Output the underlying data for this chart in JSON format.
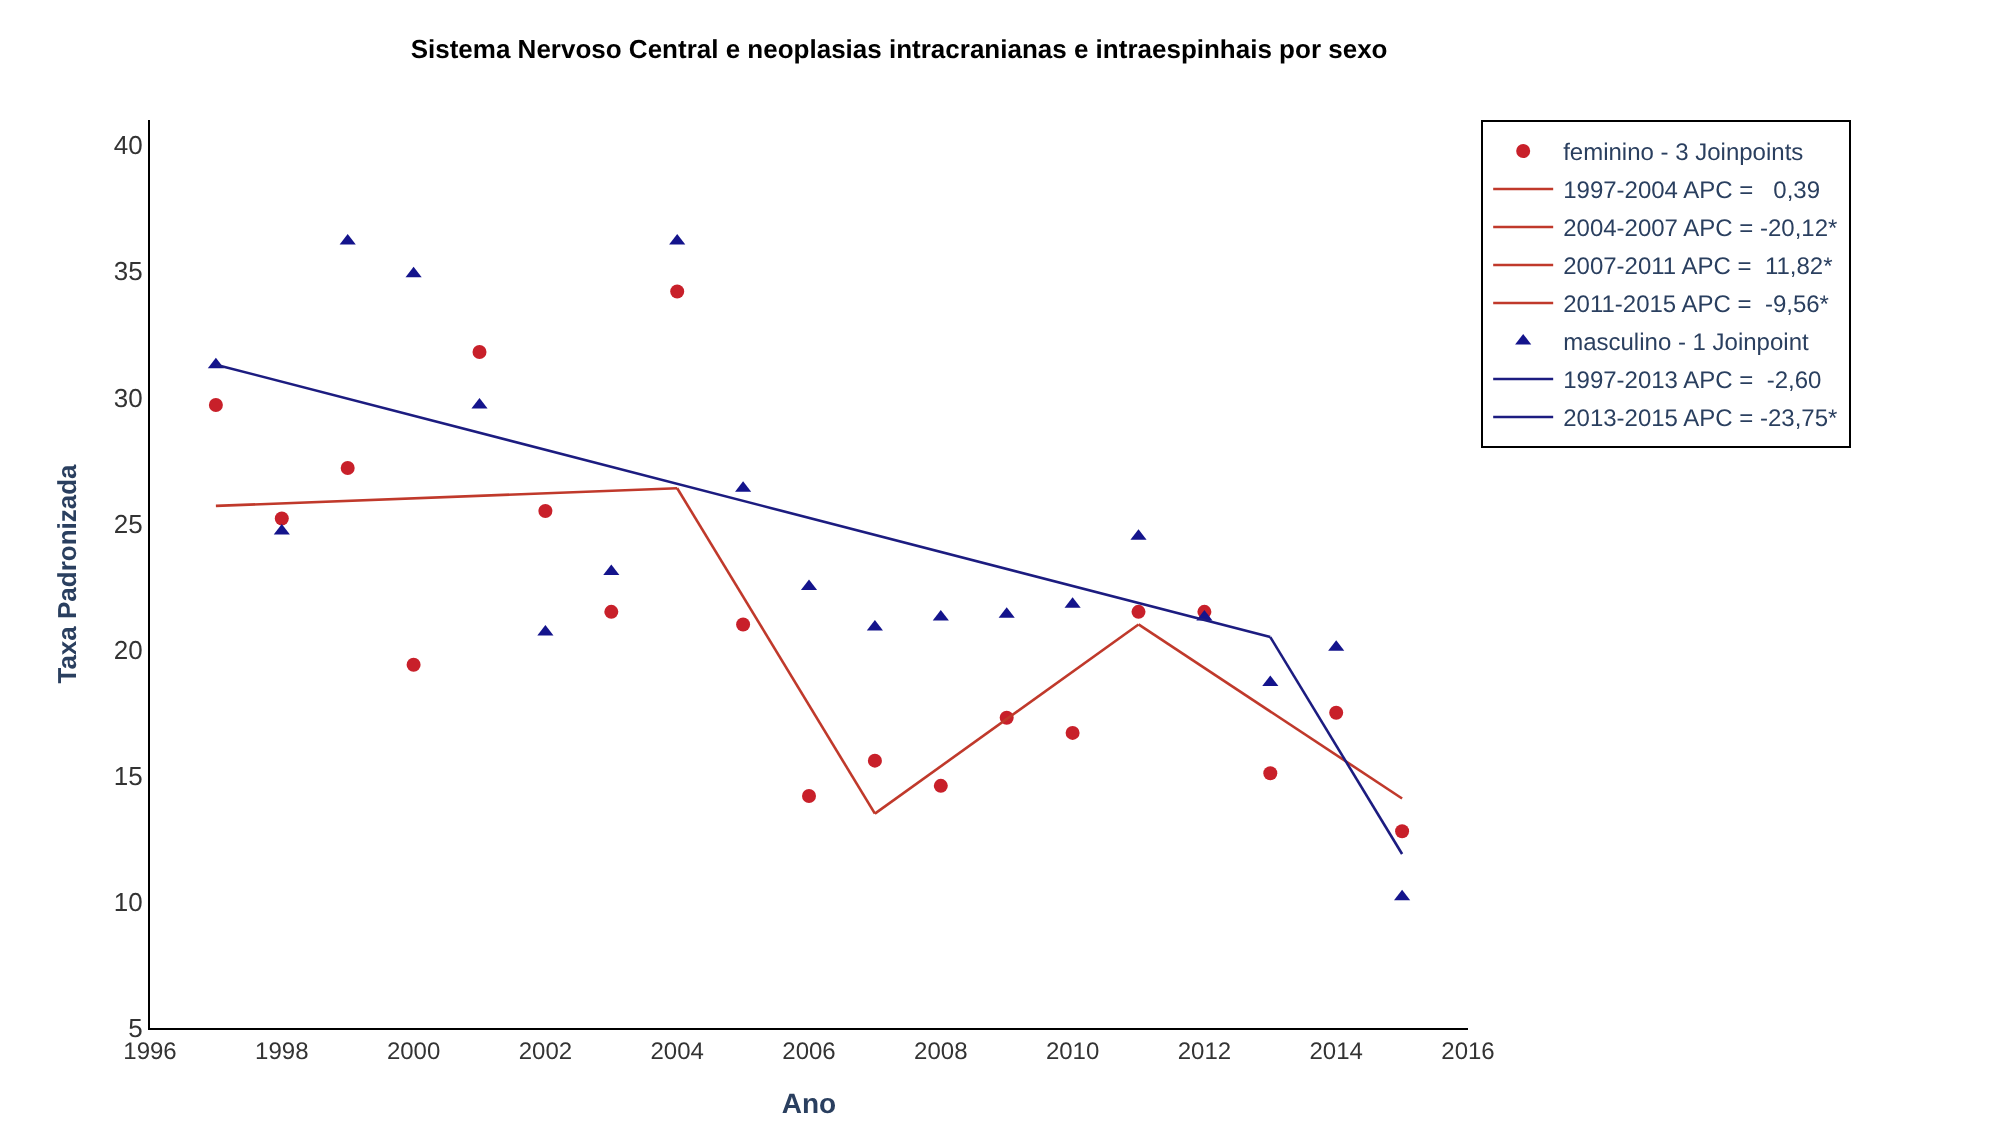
{
  "chart_data": {
    "type": "scatter",
    "title": "Sistema Nervoso Central e neoplasias intracranianas e intraespinhais por sexo",
    "xlabel": "Ano",
    "ylabel": "Taxa Padronizada",
    "xlim": [
      1996,
      2016
    ],
    "xticks": [
      1996,
      1998,
      2000,
      2002,
      2004,
      2006,
      2008,
      2010,
      2012,
      2014,
      2016
    ],
    "ylim": [
      5,
      41
    ],
    "yticks": [
      5,
      10,
      15,
      20,
      25,
      30,
      35,
      40
    ],
    "legend": "right",
    "series": [
      {
        "name": "feminino - 3 Joinpoints",
        "marker": "circle",
        "color": "#c8202a",
        "x": [
          1997,
          1998,
          1999,
          2000,
          2001,
          2002,
          2003,
          2004,
          2005,
          2006,
          2007,
          2008,
          2009,
          2010,
          2011,
          2012,
          2013,
          2014,
          2015
        ],
        "values": [
          29.7,
          25.2,
          27.2,
          19.4,
          31.8,
          25.5,
          21.5,
          34.2,
          21.0,
          14.2,
          15.6,
          14.6,
          17.3,
          16.7,
          21.5,
          21.5,
          15.1,
          17.5,
          12.8
        ]
      },
      {
        "name": "1997-2004 APC =   0,39",
        "type": "line",
        "marker": "none",
        "color": "#c0392b",
        "x": [
          1997,
          2004
        ],
        "values": [
          25.7,
          26.4
        ]
      },
      {
        "name": "2004-2007 APC = -20,12*",
        "type": "line",
        "marker": "none",
        "color": "#c0392b",
        "x": [
          2004,
          2007
        ],
        "values": [
          26.4,
          13.5
        ]
      },
      {
        "name": "2007-2011 APC =  11,82*",
        "type": "line",
        "marker": "none",
        "color": "#c0392b",
        "x": [
          2007,
          2011
        ],
        "values": [
          13.5,
          21.0
        ]
      },
      {
        "name": "2011-2015 APC =  -9,56*",
        "type": "line",
        "marker": "none",
        "color": "#c0392b",
        "x": [
          2011,
          2015
        ],
        "values": [
          21.0,
          14.1
        ]
      },
      {
        "name": "masculino - 1 Joinpoint",
        "marker": "triangle",
        "color": "#14148c",
        "x": [
          1997,
          1998,
          1999,
          2000,
          2001,
          2002,
          2003,
          2004,
          2005,
          2006,
          2007,
          2008,
          2009,
          2010,
          2011,
          2012,
          2013,
          2014,
          2015
        ],
        "values": [
          31.3,
          24.7,
          36.2,
          34.9,
          29.7,
          20.7,
          23.1,
          36.2,
          26.4,
          22.5,
          20.9,
          21.3,
          21.4,
          21.8,
          24.5,
          21.3,
          18.7,
          20.1,
          10.2
        ]
      },
      {
        "name": "1997-2013 APC =  -2,60",
        "type": "line",
        "marker": "none",
        "color": "#1c1c80",
        "x": [
          1997,
          2013
        ],
        "values": [
          31.3,
          20.5
        ]
      },
      {
        "name": "2013-2015 APC = -23,75*",
        "type": "line",
        "marker": "none",
        "color": "#1c1c80",
        "x": [
          2013,
          2015
        ],
        "values": [
          20.5,
          11.9
        ]
      }
    ]
  }
}
